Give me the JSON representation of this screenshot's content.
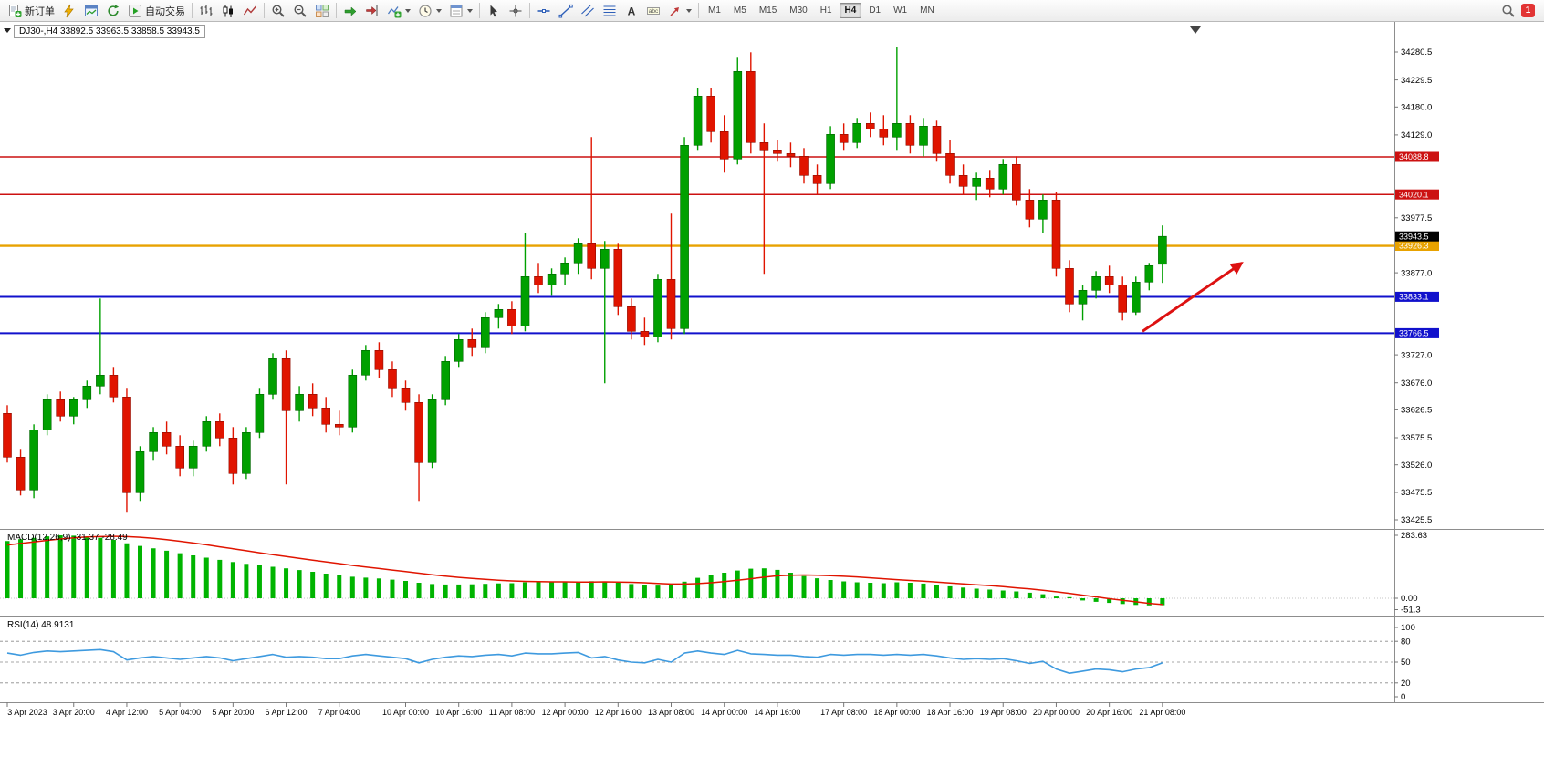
{
  "toolbar": {
    "buttons": [
      {
        "name": "new-order",
        "icon": "new-order",
        "label": "新订单"
      },
      {
        "name": "market-watch",
        "icon": "lightning"
      },
      {
        "name": "chart-window",
        "icon": "chart"
      },
      {
        "name": "refresh",
        "icon": "refresh"
      },
      {
        "name": "auto-trading",
        "icon": "play",
        "label": "自动交易"
      },
      {
        "sep": true
      },
      {
        "name": "bar-chart",
        "icon": "bars"
      },
      {
        "name": "candlestick-chart",
        "icon": "candles"
      },
      {
        "name": "line-chart",
        "icon": "line"
      },
      {
        "sep": true
      },
      {
        "name": "zoom-in",
        "icon": "zoom-in"
      },
      {
        "name": "zoom-out",
        "icon": "zoom-out"
      },
      {
        "name": "tile-windows",
        "icon": "tiles"
      },
      {
        "sep": true
      },
      {
        "name": "auto-scroll",
        "icon": "autoscroll"
      },
      {
        "name": "chart-shift",
        "icon": "shift"
      },
      {
        "name": "indicators-list",
        "icon": "indicators",
        "dd": true
      },
      {
        "name": "periods",
        "icon": "clock",
        "dd": true
      },
      {
        "name": "templates",
        "icon": "template",
        "dd": true
      },
      {
        "sep": true
      },
      {
        "name": "cursor",
        "icon": "cursor"
      },
      {
        "name": "crosshair",
        "icon": "crosshair"
      },
      {
        "sep": true
      },
      {
        "name": "horizontal-line",
        "icon": "hline"
      },
      {
        "name": "trendline",
        "icon": "trend"
      },
      {
        "name": "equidistant-channel",
        "icon": "channel"
      },
      {
        "name": "fibonacci",
        "icon": "fibo"
      },
      {
        "name": "text",
        "icon": "textA"
      },
      {
        "name": "text-label",
        "icon": "label"
      },
      {
        "name": "arrows",
        "icon": "arrowobj",
        "dd": true
      },
      {
        "sep": true
      }
    ],
    "timeframes": [
      {
        "label": "M1",
        "active": false
      },
      {
        "label": "M5",
        "active": false
      },
      {
        "label": "M15",
        "active": false
      },
      {
        "label": "M30",
        "active": false
      },
      {
        "label": "H1",
        "active": false
      },
      {
        "label": "H4",
        "active": true
      },
      {
        "label": "D1",
        "active": false
      },
      {
        "label": "W1",
        "active": false
      },
      {
        "label": "MN",
        "active": false
      }
    ],
    "right": {
      "search_icon": "search",
      "notification_badge": "1"
    }
  },
  "chart": {
    "title": "DJ30-,H4 33892.5 33963.5 33858.5 33943.5",
    "symbol": "DJ30-",
    "timeframe": "H4"
  },
  "chart_data": {
    "type": "candlestick",
    "title": "DJ30-,H4 33892.5 33963.5 33858.5 33943.5",
    "ylim": [
      33425.5,
      34280.5
    ],
    "colors": {
      "bull": "#00a000",
      "bull_edge": "#006400",
      "bear": "#e01400",
      "bear_edge": "#8e0c00",
      "macd_hist": "#00b400",
      "macd_signal": "#e01400",
      "rsi": "#3e9adf",
      "axis_text": "#000000",
      "separator": "#8d8d8d",
      "level_dash": "#8a8a8a"
    },
    "price_axis_labels": [
      34280.5,
      34229.5,
      34180.0,
      34129.0,
      34079.5,
      34028.5,
      33977.5,
      33927.0,
      33877.0,
      33826.5,
      33776.5,
      33727.0,
      33676.0,
      33626.5,
      33575.5,
      33526.0,
      33475.5,
      33425.5
    ],
    "current_price": {
      "value": 33943.5,
      "label": "33943.5",
      "color": "#000000"
    },
    "hlines": [
      {
        "name": "resistance-1",
        "price": 34088.8,
        "label": "34088.8",
        "color": "#cc1111",
        "width": 1.5
      },
      {
        "name": "resistance-2",
        "price": 34020.1,
        "label": "34020.1",
        "color": "#cc1111",
        "width": 1.5
      },
      {
        "name": "pivot",
        "price": 33926.3,
        "label": "33926.3",
        "color": "#e8a200",
        "width": 2.4
      },
      {
        "name": "support-1",
        "price": 33833.1,
        "label": "33833.1",
        "color": "#1111cc",
        "width": 2.0
      },
      {
        "name": "support-2",
        "price": 33766.5,
        "label": "33766.5",
        "color": "#1111cc",
        "width": 2.0
      }
    ],
    "candles": [
      [
        33620,
        33635,
        33530,
        33540
      ],
      [
        33540,
        33555,
        33470,
        33480
      ],
      [
        33480,
        33600,
        33465,
        33590
      ],
      [
        33590,
        33655,
        33580,
        33645
      ],
      [
        33645,
        33660,
        33605,
        33615
      ],
      [
        33615,
        33650,
        33600,
        33645
      ],
      [
        33645,
        33680,
        33630,
        33670
      ],
      [
        33670,
        33830,
        33655,
        33690
      ],
      [
        33690,
        33705,
        33640,
        33650
      ],
      [
        33650,
        33665,
        33440,
        33475
      ],
      [
        33475,
        33560,
        33460,
        33550
      ],
      [
        33550,
        33595,
        33535,
        33585
      ],
      [
        33585,
        33605,
        33545,
        33560
      ],
      [
        33560,
        33580,
        33505,
        33520
      ],
      [
        33520,
        33570,
        33505,
        33560
      ],
      [
        33560,
        33615,
        33550,
        33605
      ],
      [
        33605,
        33620,
        33560,
        33575
      ],
      [
        33575,
        33595,
        33490,
        33510
      ],
      [
        33510,
        33595,
        33500,
        33585
      ],
      [
        33585,
        33665,
        33575,
        33655
      ],
      [
        33655,
        33730,
        33645,
        33720
      ],
      [
        33720,
        33735,
        33490,
        33625
      ],
      [
        33625,
        33670,
        33605,
        33655
      ],
      [
        33655,
        33675,
        33615,
        33630
      ],
      [
        33630,
        33650,
        33585,
        33600
      ],
      [
        33600,
        33625,
        33580,
        33595
      ],
      [
        33595,
        33700,
        33585,
        33690
      ],
      [
        33690,
        33745,
        33680,
        33735
      ],
      [
        33735,
        33750,
        33685,
        33700
      ],
      [
        33700,
        33715,
        33650,
        33665
      ],
      [
        33665,
        33680,
        33625,
        33640
      ],
      [
        33640,
        33655,
        33460,
        33530
      ],
      [
        33530,
        33655,
        33520,
        33645
      ],
      [
        33645,
        33725,
        33635,
        33715
      ],
      [
        33715,
        33765,
        33705,
        33755
      ],
      [
        33755,
        33775,
        33725,
        33740
      ],
      [
        33740,
        33805,
        33730,
        33795
      ],
      [
        33795,
        33820,
        33775,
        33810
      ],
      [
        33810,
        33825,
        33765,
        33780
      ],
      [
        33780,
        33950,
        33770,
        33870
      ],
      [
        33870,
        33895,
        33840,
        33855
      ],
      [
        33855,
        33885,
        33835,
        33875
      ],
      [
        33875,
        33905,
        33855,
        33895
      ],
      [
        33895,
        33940,
        33875,
        33930
      ],
      [
        33930,
        34125,
        33865,
        33885
      ],
      [
        33885,
        33935,
        33675,
        33920
      ],
      [
        33920,
        33930,
        33800,
        33815
      ],
      [
        33815,
        33830,
        33755,
        33770
      ],
      [
        33770,
        33795,
        33745,
        33760
      ],
      [
        33760,
        33875,
        33750,
        33865
      ],
      [
        33865,
        33985,
        33755,
        33775
      ],
      [
        33775,
        34125,
        33765,
        34110
      ],
      [
        34110,
        34215,
        34100,
        34200
      ],
      [
        34200,
        34215,
        34115,
        34135
      ],
      [
        34135,
        34165,
        34060,
        34085
      ],
      [
        34085,
        34270,
        34075,
        34245
      ],
      [
        34245,
        34280,
        34095,
        34115
      ],
      [
        34115,
        34150,
        33875,
        34100
      ],
      [
        34100,
        34120,
        34080,
        34095
      ],
      [
        34095,
        34115,
        34070,
        34090
      ],
      [
        34090,
        34105,
        34040,
        34055
      ],
      [
        34055,
        34075,
        34020,
        34040
      ],
      [
        34040,
        34145,
        34030,
        34130
      ],
      [
        34130,
        34150,
        34100,
        34115
      ],
      [
        34115,
        34160,
        34105,
        34150
      ],
      [
        34150,
        34170,
        34125,
        34140
      ],
      [
        34140,
        34165,
        34110,
        34125
      ],
      [
        34125,
        34290,
        34100,
        34150
      ],
      [
        34150,
        34165,
        34095,
        34110
      ],
      [
        34110,
        34160,
        34090,
        34145
      ],
      [
        34145,
        34155,
        34080,
        34095
      ],
      [
        34095,
        34120,
        34040,
        34055
      ],
      [
        34055,
        34075,
        34020,
        34035
      ],
      [
        34035,
        34060,
        34010,
        34050
      ],
      [
        34050,
        34065,
        34015,
        34030
      ],
      [
        34030,
        34085,
        34020,
        34075
      ],
      [
        34075,
        34090,
        34000,
        34010
      ],
      [
        34010,
        34030,
        33960,
        33975
      ],
      [
        33975,
        34020,
        33950,
        34010
      ],
      [
        34010,
        34025,
        33870,
        33885
      ],
      [
        33885,
        33900,
        33805,
        33820
      ],
      [
        33820,
        33855,
        33790,
        33845
      ],
      [
        33845,
        33880,
        33830,
        33870
      ],
      [
        33870,
        33890,
        33840,
        33855
      ],
      [
        33855,
        33870,
        33790,
        33805
      ],
      [
        33805,
        33870,
        33800,
        33860
      ],
      [
        33860,
        33895,
        33845,
        33890
      ],
      [
        33892.5,
        33963.5,
        33858.5,
        33943.5
      ]
    ],
    "time_labels": [
      {
        "index": 0,
        "label": "3 Apr 2023"
      },
      {
        "index": 5,
        "label": "3 Apr 20:00"
      },
      {
        "index": 9,
        "label": "4 Apr 12:00"
      },
      {
        "index": 13,
        "label": "5 Apr 04:00"
      },
      {
        "index": 17,
        "label": "5 Apr 20:00"
      },
      {
        "index": 21,
        "label": "6 Apr 12:00"
      },
      {
        "index": 25,
        "label": "7 Apr 04:00"
      },
      {
        "index": 30,
        "label": "10 Apr 00:00"
      },
      {
        "index": 34,
        "label": "10 Apr 16:00"
      },
      {
        "index": 38,
        "label": "11 Apr 08:00"
      },
      {
        "index": 42,
        "label": "12 Apr 00:00"
      },
      {
        "index": 46,
        "label": "12 Apr 16:00"
      },
      {
        "index": 50,
        "label": "13 Apr 08:00"
      },
      {
        "index": 54,
        "label": "14 Apr 00:00"
      },
      {
        "index": 58,
        "label": "14 Apr 16:00"
      },
      {
        "index": 63,
        "label": "17 Apr 08:00"
      },
      {
        "index": 67,
        "label": "18 Apr 00:00"
      },
      {
        "index": 71,
        "label": "18 Apr 16:00"
      },
      {
        "index": 75,
        "label": "19 Apr 08:00"
      },
      {
        "index": 79,
        "label": "20 Apr 00:00"
      },
      {
        "index": 83,
        "label": "20 Apr 16:00"
      },
      {
        "index": 87,
        "label": "21 Apr 08:00"
      }
    ],
    "indicators": {
      "macd": {
        "label": "MACD(12,26,9) -31.37 -28.49",
        "name": "MACD",
        "params": "12,26,9",
        "axis_labels": [
          "283.63",
          "0.00",
          "-51.3"
        ],
        "main": [
          258,
          266,
          272,
          279,
          283.63,
          282,
          278,
          272,
          263,
          248,
          236,
          225,
          214,
          203,
          193,
          183,
          173,
          163,
          155,
          148,
          142,
          135,
          127,
          119,
          111,
          103,
          97,
          93,
          89,
          84,
          78,
          70,
          64,
          62,
          62,
          63,
          65,
          67,
          68,
          72,
          74,
          74,
          73,
          74,
          77,
          76,
          70,
          64,
          59,
          57,
          60,
          75,
          92,
          105,
          115,
          125,
          133,
          135,
          128,
          115,
          100,
          90,
          82,
          76,
          72,
          70,
          68,
          72,
          70,
          66,
          60,
          54,
          48,
          43,
          39,
          35,
          31,
          25,
          18,
          8,
          -2,
          -10,
          -16,
          -21,
          -26,
          -30,
          -32,
          -31.37
        ],
        "signal": [
          240,
          247,
          254,
          261,
          267,
          272,
          276,
          278,
          279,
          278,
          275,
          270,
          264,
          257,
          249,
          241,
          232,
          223,
          214,
          205,
          196,
          188,
          180,
          172,
          164,
          156,
          148,
          141,
          134,
          127,
          120,
          113,
          106,
          100,
          94,
          89,
          85,
          81,
          78,
          76,
          75,
          74,
          74,
          73,
          73,
          74,
          73,
          72,
          70,
          67,
          64,
          64,
          66,
          70,
          75,
          81,
          88,
          95,
          101,
          104,
          105,
          104,
          102,
          99,
          96,
          92,
          88,
          84,
          80,
          77,
          73,
          69,
          65,
          61,
          57,
          52,
          47,
          42,
          36,
          29,
          22,
          14,
          6,
          -2,
          -9,
          -16,
          -23,
          -28.49
        ]
      },
      "rsi": {
        "label": "RSI(14) 48.9131",
        "name": "RSI",
        "params": "14",
        "axis_labels": [
          "100",
          "80",
          "50",
          "20",
          "0"
        ],
        "levels": [
          80,
          50,
          20
        ],
        "values": [
          63,
          60,
          64,
          66,
          65,
          66,
          67,
          68,
          65,
          53,
          56,
          58,
          56,
          54,
          56,
          58,
          56,
          52,
          55,
          58,
          61,
          57,
          58,
          57,
          55,
          55,
          59,
          61,
          59,
          57,
          55,
          49,
          54,
          57,
          59,
          58,
          60,
          61,
          59,
          63,
          62,
          62,
          63,
          64,
          56,
          58,
          53,
          50,
          49,
          54,
          50,
          63,
          66,
          63,
          61,
          67,
          62,
          61,
          60,
          60,
          58,
          57,
          61,
          60,
          61,
          61,
          60,
          61,
          60,
          61,
          59,
          56,
          54,
          55,
          54,
          55,
          52,
          48,
          51,
          40,
          34,
          37,
          40,
          39,
          36,
          40,
          42,
          48.91
        ]
      }
    },
    "drawings": {
      "trend_arrow": {
        "from": {
          "index": 85.5,
          "price": 33770
        },
        "to": {
          "index": 93,
          "price": 33895
        },
        "color": "#dd1111"
      }
    }
  }
}
